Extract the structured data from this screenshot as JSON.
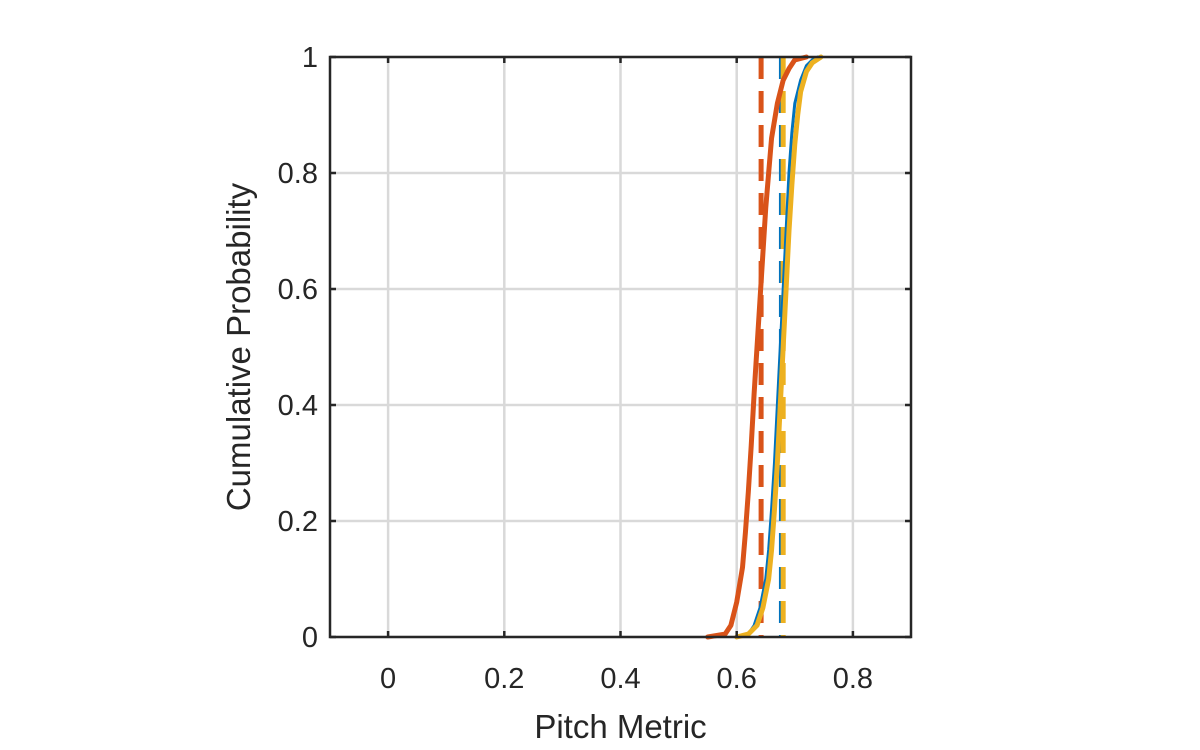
{
  "chart_data": {
    "type": "line",
    "title": "",
    "xlabel": "Pitch Metric",
    "ylabel": "Cumulative Probability",
    "xlim": [
      -0.1,
      0.9
    ],
    "ylim": [
      0,
      1
    ],
    "xticks": [
      0,
      0.2,
      0.4,
      0.6,
      0.8
    ],
    "xtick_labels": [
      "0",
      "0.2",
      "0.4",
      "0.6",
      "0.8"
    ],
    "yticks": [
      0,
      0.2,
      0.4,
      0.6,
      0.8,
      1
    ],
    "ytick_labels": [
      "0",
      "0.2",
      "0.4",
      "0.6",
      "0.8",
      "1"
    ],
    "grid": true,
    "colors": {
      "blue": "#0072bd",
      "orange": "#d95319",
      "yellow": "#edb120"
    },
    "series": [
      {
        "color": "#0072bd",
        "x": [
          0.6,
          0.62,
          0.63,
          0.64,
          0.65,
          0.655,
          0.66,
          0.665,
          0.67,
          0.675,
          0.68,
          0.685,
          0.69,
          0.695,
          0.7,
          0.71,
          0.72,
          0.73,
          0.74
        ],
        "y": [
          0,
          0.005,
          0.02,
          0.05,
          0.1,
          0.15,
          0.22,
          0.3,
          0.4,
          0.5,
          0.6,
          0.7,
          0.8,
          0.87,
          0.92,
          0.96,
          0.985,
          0.995,
          1.0
        ]
      },
      {
        "color": "#d95319",
        "x": [
          0.55,
          0.58,
          0.59,
          0.6,
          0.61,
          0.615,
          0.62,
          0.625,
          0.63,
          0.635,
          0.64,
          0.645,
          0.65,
          0.655,
          0.66,
          0.67,
          0.68,
          0.69,
          0.7,
          0.72
        ],
        "y": [
          0,
          0.005,
          0.02,
          0.06,
          0.12,
          0.18,
          0.25,
          0.33,
          0.42,
          0.5,
          0.58,
          0.66,
          0.74,
          0.8,
          0.86,
          0.92,
          0.96,
          0.98,
          0.995,
          1.0
        ]
      },
      {
        "color": "#edb120",
        "x": [
          0.6,
          0.62,
          0.635,
          0.645,
          0.655,
          0.66,
          0.665,
          0.67,
          0.675,
          0.68,
          0.685,
          0.69,
          0.695,
          0.7,
          0.705,
          0.71,
          0.72,
          0.73,
          0.745
        ],
        "y": [
          0,
          0.005,
          0.02,
          0.05,
          0.1,
          0.15,
          0.22,
          0.3,
          0.4,
          0.5,
          0.6,
          0.7,
          0.78,
          0.85,
          0.9,
          0.94,
          0.975,
          0.99,
          1.0
        ]
      }
    ],
    "vertical_lines": [
      {
        "x": 0.642,
        "color": "#d95319",
        "style": "dashed"
      },
      {
        "x": 0.677,
        "color": "#0072bd",
        "style": "dashed"
      },
      {
        "x": 0.68,
        "color": "#edb120",
        "style": "dashed"
      }
    ]
  }
}
